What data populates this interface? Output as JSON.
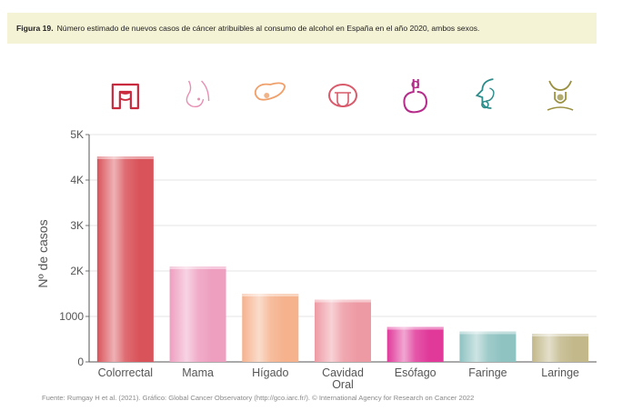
{
  "caption": {
    "label": "Figura 19.",
    "text": "Número estimado de nuevos casos de cáncer atribuibles al consumo de alcohol en España en el año 2020, ambos sexos."
  },
  "footer": {
    "source": "Fuente: Rumgay H et al. (2021). Gráfico: Global Cancer Observatory (http://gco.iarc.fr/). © International Agency for Research on Cancer 2022"
  },
  "chart_data": {
    "type": "bar",
    "ylabel": "Nº de casos",
    "ylim": [
      0,
      5000
    ],
    "yticks": [
      {
        "value": 0,
        "label": "0"
      },
      {
        "value": 1000,
        "label": "1000"
      },
      {
        "value": 2000,
        "label": "2K"
      },
      {
        "value": 3000,
        "label": "3K"
      },
      {
        "value": 4000,
        "label": "4K"
      },
      {
        "value": 5000,
        "label": "5K"
      }
    ],
    "grid": true,
    "categories": [
      "Colorrectal",
      "Mama",
      "Hígado",
      "Cavidad Oral",
      "Esófago",
      "Faringe",
      "Laringe"
    ],
    "category_lines": [
      [
        "Colorrectal"
      ],
      [
        "Mama"
      ],
      [
        "Hígado"
      ],
      [
        "Cavidad",
        "Oral"
      ],
      [
        "Esófago"
      ],
      [
        "Faringe"
      ],
      [
        "Laringe"
      ]
    ],
    "values": [
      4520,
      2100,
      1500,
      1370,
      770,
      670,
      620
    ],
    "colors": [
      "#d9535a",
      "#ee9fc0",
      "#f5b28d",
      "#ee9aa4",
      "#e0399a",
      "#8fc3c2",
      "#c2b88a"
    ],
    "icons": [
      "intestine-icon",
      "breast-icon",
      "liver-icon",
      "mouth-icon",
      "esophagus-icon",
      "pharynx-icon",
      "larynx-icon"
    ],
    "icon_colors": [
      "#c92a3e",
      "#e78fb3",
      "#f0a06a",
      "#d95b6b",
      "#b52c8a",
      "#2c8d8a",
      "#9a9040"
    ]
  }
}
